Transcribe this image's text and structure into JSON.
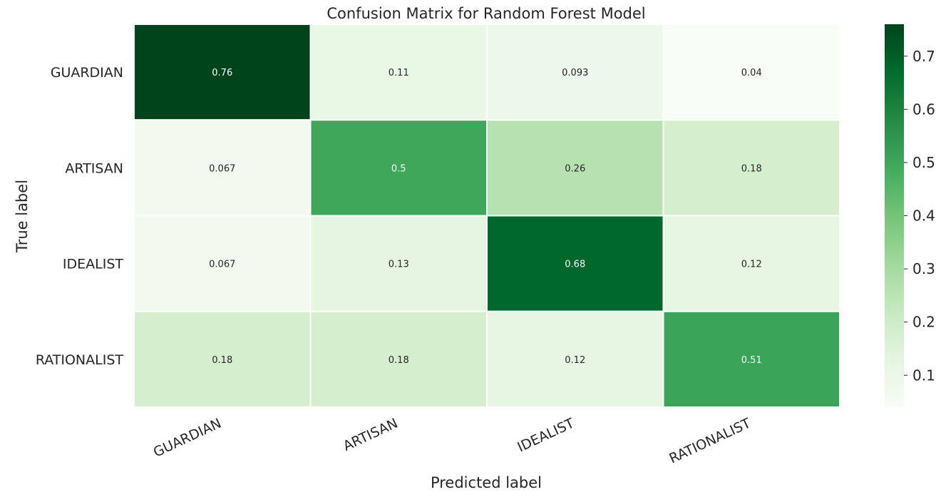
{
  "chart_data": {
    "type": "heatmap",
    "title": "Confusion Matrix for Random Forest Model",
    "xlabel": "Predicted label",
    "ylabel": "True label",
    "x_categories": [
      "GUARDIAN",
      "ARTISAN",
      "IDEALIST",
      "RATIONALIST"
    ],
    "y_categories": [
      "GUARDIAN",
      "ARTISAN",
      "IDEALIST",
      "RATIONALIST"
    ],
    "values": [
      [
        0.76,
        0.11,
        0.093,
        0.04
      ],
      [
        0.067,
        0.5,
        0.26,
        0.18
      ],
      [
        0.067,
        0.13,
        0.68,
        0.12
      ],
      [
        0.18,
        0.18,
        0.12,
        0.51
      ]
    ],
    "cell_labels": [
      [
        "0.76",
        "0.11",
        "0.093",
        "0.04"
      ],
      [
        "0.067",
        "0.5",
        "0.26",
        "0.18"
      ],
      [
        "0.067",
        "0.13",
        "0.68",
        "0.12"
      ],
      [
        "0.18",
        "0.18",
        "0.12",
        "0.51"
      ]
    ],
    "colorbar": {
      "range": [
        0.04,
        0.76
      ],
      "ticks": [
        0.1,
        0.2,
        0.3,
        0.4,
        0.5,
        0.6,
        0.7
      ],
      "tick_labels": [
        "0.1",
        "0.2",
        "0.3",
        "0.4",
        "0.5",
        "0.6",
        "0.7"
      ]
    },
    "colormap": "Greens",
    "colors": {
      "low": "#f7fcf5",
      "high": "#00441b",
      "cell_border": "#ffffff",
      "text_dark": "#262626",
      "text_light": "#ffffff"
    }
  }
}
